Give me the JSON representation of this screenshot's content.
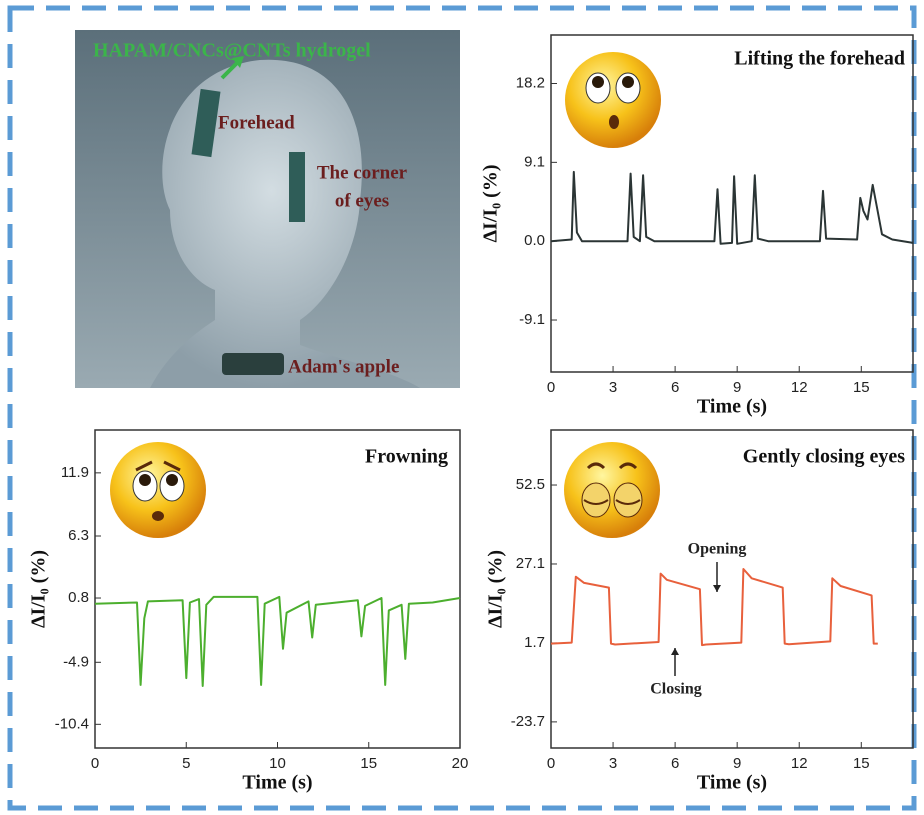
{
  "illustration": {
    "material_label": "HAPAM/CNCs@CNTs hydrogel",
    "forehead_label": "Forehead",
    "eye_label_lines": [
      "The corner",
      "of eyes"
    ],
    "throat_label": "Adam's apple"
  },
  "chart_data": [
    {
      "type": "line",
      "title": "Lifting the forehead",
      "x_label": "Time (s)",
      "y_label": "ΔI/I₀ (%)",
      "color": "#2b3535",
      "x": [
        0,
        1.0,
        1.1,
        1.25,
        1.5,
        3.7,
        3.85,
        4.0,
        4.3,
        4.45,
        4.6,
        5.0,
        7.9,
        8.05,
        8.2,
        8.75,
        8.85,
        9.0,
        9.7,
        9.85,
        10.0,
        10.5,
        13.0,
        13.15,
        13.3,
        14.8,
        14.95,
        15.1,
        15.3,
        15.55,
        15.75,
        16.0,
        16.5,
        17.5
      ],
      "values": [
        0,
        0.2,
        8.0,
        1.0,
        0,
        0,
        7.8,
        0.5,
        0,
        7.6,
        0.5,
        0,
        0,
        6.0,
        -0.3,
        -0.2,
        7.5,
        -0.3,
        0,
        7.6,
        0.3,
        0,
        0,
        5.8,
        0.3,
        0.2,
        5.0,
        3.5,
        2.5,
        6.5,
        4.0,
        0.8,
        0.2,
        -0.2
      ],
      "xlim": [
        0,
        17.5
      ],
      "xticks": [
        0,
        3,
        6,
        9,
        12,
        15
      ],
      "ylim": [
        -15.1,
        23.8
      ],
      "yticks": [
        18.2,
        9.1,
        {
          "value": 0,
          "label": "0.0"
        },
        -9.1
      ]
    },
    {
      "type": "line",
      "title": "Frowning",
      "x_label": "Time (s)",
      "y_label": "ΔI/I₀ (%)",
      "color": "#4caf2e",
      "x": [
        0,
        2.3,
        2.5,
        2.7,
        2.9,
        4.8,
        5.0,
        5.2,
        5.7,
        5.9,
        6.1,
        6.5,
        8.9,
        9.1,
        9.3,
        10.1,
        10.3,
        10.5,
        11.7,
        11.9,
        12.1,
        14.4,
        14.6,
        14.8,
        15.7,
        15.9,
        16.1,
        16.8,
        17.0,
        17.2,
        18.5,
        20
      ],
      "values": [
        0.3,
        0.4,
        -6.9,
        -1.0,
        0.5,
        0.6,
        -6.3,
        0.4,
        0.7,
        -7.0,
        0.2,
        0.9,
        0.9,
        -6.9,
        0.3,
        0.9,
        -3.7,
        -0.5,
        0.5,
        -2.7,
        0.2,
        0.6,
        -2.6,
        0.1,
        0.8,
        -6.9,
        -0.3,
        0.2,
        -4.6,
        0.3,
        0.4,
        0.8
      ],
      "xlim": [
        0,
        20
      ],
      "xticks": [
        0,
        5,
        10,
        15,
        20
      ],
      "ylim": [
        -12.5,
        15.7
      ],
      "yticks": [
        11.9,
        6.3,
        0.8,
        -4.9,
        -10.4
      ]
    },
    {
      "type": "line",
      "title": "Gently closing eyes",
      "x_label": "Time (s)",
      "y_label": "ΔI/I₀ (%)",
      "color": "#e8603c",
      "x": [
        0,
        1.0,
        1.2,
        1.6,
        2.8,
        2.9,
        3.1,
        5.2,
        5.3,
        5.6,
        7.2,
        7.3,
        7.5,
        9.2,
        9.3,
        9.7,
        11.2,
        11.3,
        11.5,
        13.5,
        13.6,
        14.0,
        15.5,
        15.6,
        15.8
      ],
      "values": [
        1.5,
        1.8,
        23.0,
        21.0,
        19.5,
        1.5,
        1.2,
        2.0,
        24.0,
        22.0,
        19.0,
        1.0,
        1.2,
        1.8,
        25.5,
        22.5,
        19.5,
        1.5,
        1.3,
        2.2,
        22.5,
        20.0,
        17.0,
        1.5,
        1.5
      ],
      "xlim": [
        0,
        17.5
      ],
      "xticks": [
        0,
        3,
        6,
        9,
        12,
        15
      ],
      "ylim": [
        -32.1,
        70.2
      ],
      "yticks": [
        52.5,
        27.1,
        1.7,
        -23.7
      ],
      "annotations": [
        "Opening",
        "Closing"
      ]
    }
  ]
}
